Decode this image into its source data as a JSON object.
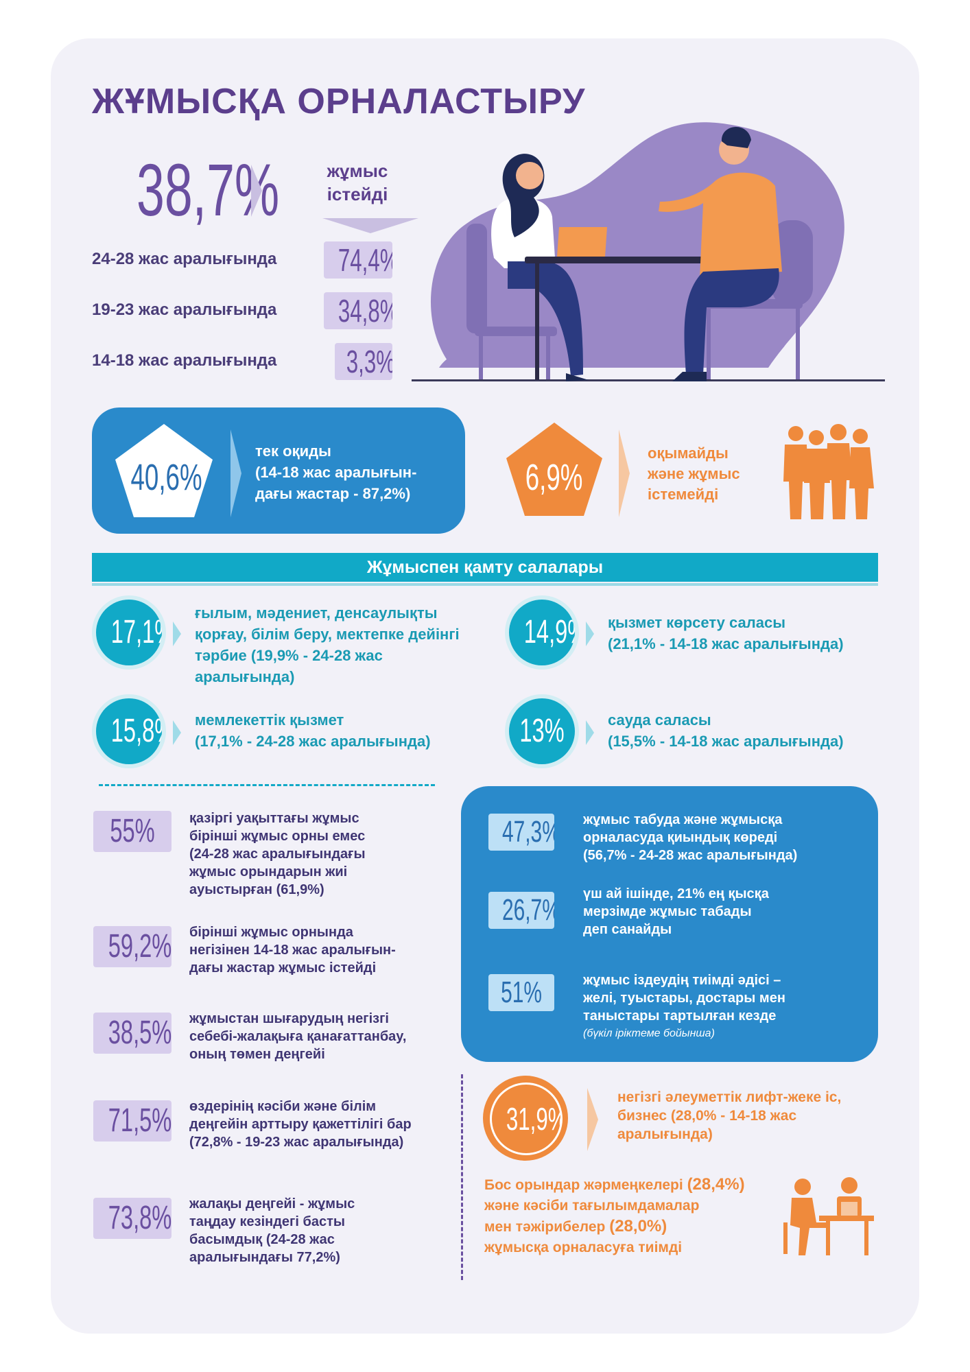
{
  "title": "ЖҰМЫСҚА ОРНАЛАСТЫРУ",
  "top": {
    "main_percent": "38,7%",
    "works_label": "жұмыс істейді",
    "age_groups": [
      {
        "label": "24-28 жас аралығында",
        "value": "74,4%"
      },
      {
        "label": "19-23 жас аралығында",
        "value": "34,8%"
      },
      {
        "label": "14-18 жас аралығында",
        "value": "3,3%"
      }
    ]
  },
  "study_only": {
    "value": "40,6%",
    "line1": "тек оқиды",
    "line2": "(14-18 жас аралығын-",
    "line3": "дағы жастар  - 87,2%)"
  },
  "neet": {
    "value": "6,9%",
    "line1": "оқымайды",
    "line2": "және жұмыс",
    "line3": "істемейді"
  },
  "sectors": {
    "title": "Жұмыспен қамту салалары",
    "items": [
      {
        "value": "17,1%",
        "lines": [
          "ғылым, мәдениет, денсаулықты",
          "қорғау, білім беру, мектепке дейінгі",
          "тәрбие (19,9% - 24-28 жас",
          "аралығында)"
        ]
      },
      {
        "value": "14,9%",
        "lines": [
          "қызмет көрсету саласы",
          "(21,1% - 14-18 жас аралығында)"
        ]
      },
      {
        "value": "15,8%",
        "lines": [
          "мемлекеттік қызмет",
          "(17,1% - 24-28 жас аралығында)"
        ]
      },
      {
        "value": "13%",
        "lines": [
          "сауда саласы",
          "(15,5% - 14-18 жас аралығында)"
        ]
      }
    ]
  },
  "left_stats": [
    {
      "value": "55%",
      "lines": [
        "қазіргі уақыттағы жұмыс",
        "бірінші жұмыс орны емес",
        "(24-28 жас аралығындағы",
        "жұмыс орындарын жиі",
        "ауыстырған (61,9%)"
      ]
    },
    {
      "value": "59,2%",
      "lines": [
        "бірінші жұмыс орнында",
        "негізінен 14-18 жас аралығын-",
        "дағы жастар жұмыс істейді"
      ]
    },
    {
      "value": "38,5%",
      "lines": [
        "жұмыстан шығарудың негізгі",
        "себебі-жалақыға қанағаттанбау,",
        "оның төмен деңгейі"
      ]
    },
    {
      "value": "71,5%",
      "lines": [
        "өздерінің кәсіби және білім",
        "деңгейін арттыру қажеттілігі бар",
        "(72,8% - 19-23 жас аралығында)"
      ]
    },
    {
      "value": "73,8%",
      "lines": [
        "жалақы деңгейі - жұмыс",
        "таңдау кезіндегі басты",
        "басымдық (24-28 жас",
        "аралығындағы 77,2%)"
      ]
    }
  ],
  "right_stats": [
    {
      "value": "47,3%",
      "lines": [
        "жұмыс табуда және жұмысқа",
        "орналасуда қиындық көреді",
        "(56,7% - 24-28 жас аралығында)"
      ]
    },
    {
      "value": "26,7%",
      "lines": [
        "үш ай ішінде, 21% ең қысқа",
        "мерзімде жұмыс табады",
        "деп санайды"
      ]
    },
    {
      "value": "51%",
      "lines": [
        "жұмыс іздеудің тиімді әдісі –",
        "желі, туыстары, достары мен",
        "таныстары тартылған кезде"
      ],
      "note": "(бүкіл іріктеме бойынша)"
    }
  ],
  "lift": {
    "value": "31,9%",
    "lines": [
      "негізгі әлеуметтік лифт-жеке іс,",
      "бизнес (28,0% - 14-18 жас",
      "аралығында)"
    ]
  },
  "fairs": {
    "line1_a": "Бос орындар жәрмеңкелері ",
    "line1_b": "(28,4%)",
    "line2": "және кәсіби тағылымдамалар",
    "line3_a": "мен тәжірибелер  ",
    "line3_b": "(28,0%)",
    "line4": "жұмысқа орналасуға тиімді"
  },
  "colors": {
    "purple": "#5b3e8c",
    "lavender": "#d7cdec",
    "blue": "#2a8acb",
    "teal": "#11a9c7",
    "orange": "#ef8a3c"
  }
}
